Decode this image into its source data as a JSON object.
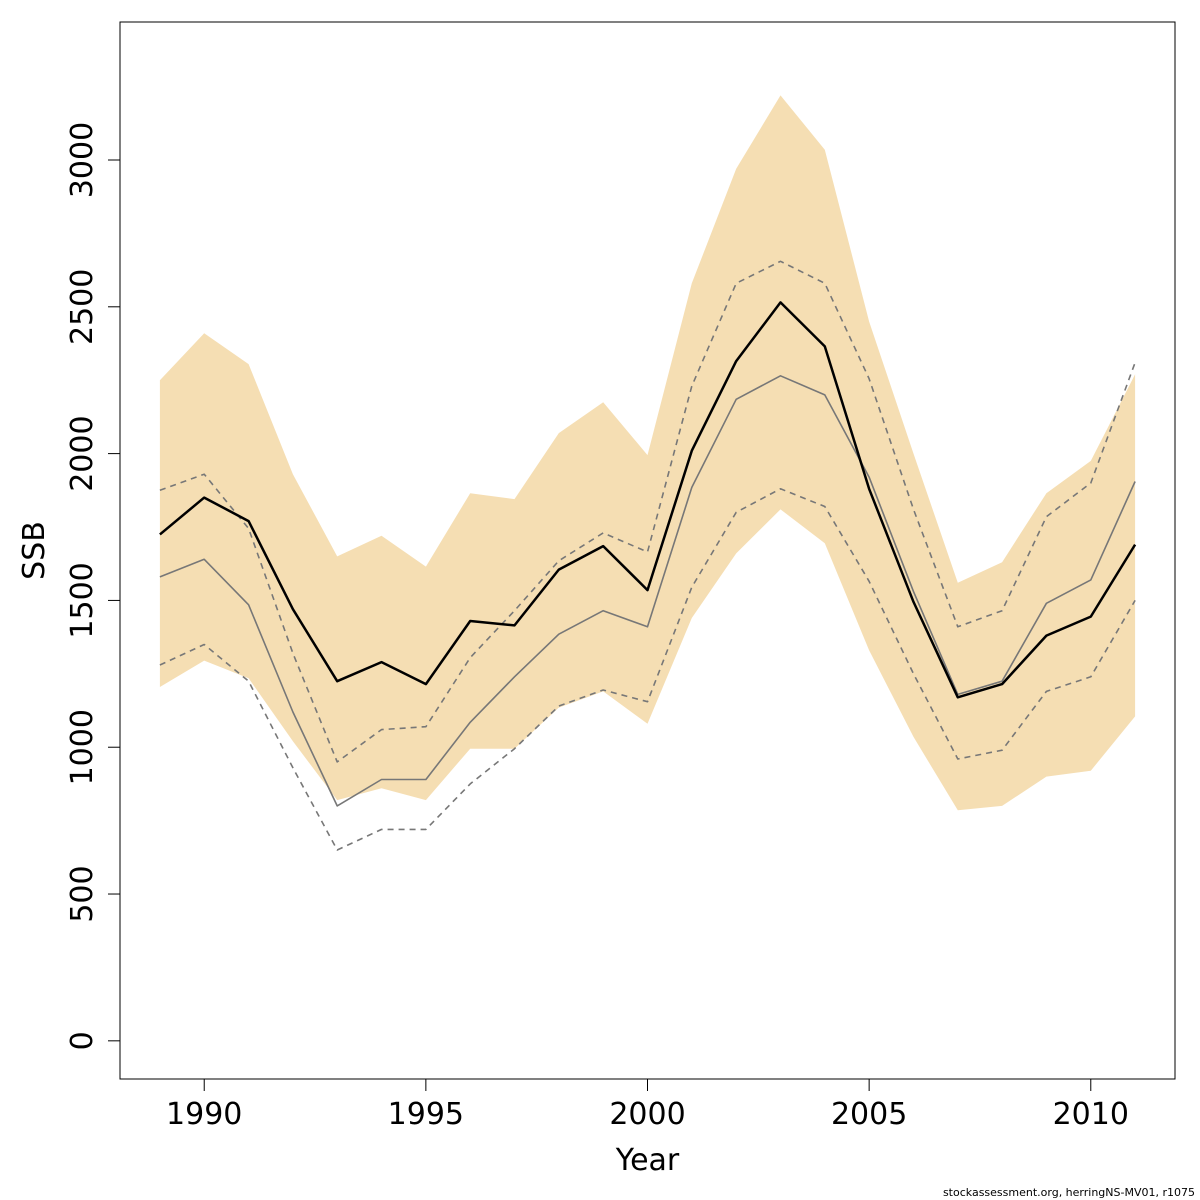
{
  "chart_data": {
    "type": "line",
    "title": "",
    "xlabel": "Year",
    "ylabel": "SSB",
    "xlim": [
      1988.1,
      2011.9
    ],
    "ylim": [
      -130,
      3470
    ],
    "x_ticks": [
      1990,
      1995,
      2000,
      2005,
      2010
    ],
    "y_ticks": [
      0,
      500,
      1000,
      1500,
      2000,
      2500,
      3000
    ],
    "x_tick_labels": [
      "1990",
      "1995",
      "2000",
      "2005",
      "2010"
    ],
    "y_tick_labels": [
      "0",
      "500",
      "1000",
      "1500",
      "2000",
      "2500",
      "3000"
    ],
    "grid": false,
    "legend": "none",
    "x": [
      1989,
      1990,
      1991,
      1992,
      1993,
      1994,
      1995,
      1996,
      1997,
      1998,
      1999,
      2000,
      2001,
      2002,
      2003,
      2004,
      2005,
      2006,
      2007,
      2008,
      2009,
      2010,
      2011
    ],
    "band": {
      "color": "#f5deb3",
      "upper": [
        2250,
        2410,
        2305,
        1930,
        1650,
        1720,
        1615,
        1865,
        1845,
        2070,
        2175,
        1995,
        2580,
        2970,
        3220,
        3035,
        2450,
        2000,
        1560,
        1630,
        1865,
        1975,
        2270
      ],
      "lower": [
        1205,
        1295,
        1235,
        1020,
        820,
        860,
        820,
        995,
        995,
        1135,
        1190,
        1080,
        1440,
        1660,
        1810,
        1695,
        1330,
        1035,
        785,
        800,
        900,
        920,
        1105
      ]
    },
    "series": [
      {
        "values": [
          1725,
          1850,
          1770,
          1470,
          1225,
          1290,
          1215,
          1430,
          1415,
          1605,
          1685,
          1535,
          2010,
          2315,
          2515,
          2365,
          1880,
          1495,
          1170,
          1215,
          1380,
          1445,
          1690
        ],
        "color": "#000000",
        "style": "solid",
        "width": 2.5
      },
      {
        "values": [
          1580,
          1640,
          1485,
          1120,
          800,
          890,
          890,
          1085,
          1240,
          1385,
          1465,
          1410,
          1885,
          2185,
          2265,
          2200,
          1920,
          1530,
          1180,
          1225,
          1490,
          1570,
          1905
        ],
        "color": "#777777",
        "style": "solid",
        "width": 1.6
      },
      {
        "values": [
          1875,
          1930,
          1745,
          1320,
          950,
          1060,
          1070,
          1305,
          1465,
          1635,
          1730,
          1665,
          2230,
          2580,
          2655,
          2580,
          2255,
          1810,
          1410,
          1465,
          1785,
          1900,
          2310
        ],
        "color": "#777777",
        "style": "dashed",
        "width": 1.6
      },
      {
        "values": [
          1280,
          1350,
          1225,
          930,
          650,
          720,
          720,
          875,
          995,
          1140,
          1195,
          1155,
          1545,
          1800,
          1880,
          1820,
          1565,
          1250,
          960,
          990,
          1190,
          1240,
          1500
        ],
        "color": "#777777",
        "style": "dashed",
        "width": 1.6
      }
    ]
  },
  "footer": {
    "note": "stockassessment.org, herringNS-MV01, r1075"
  }
}
